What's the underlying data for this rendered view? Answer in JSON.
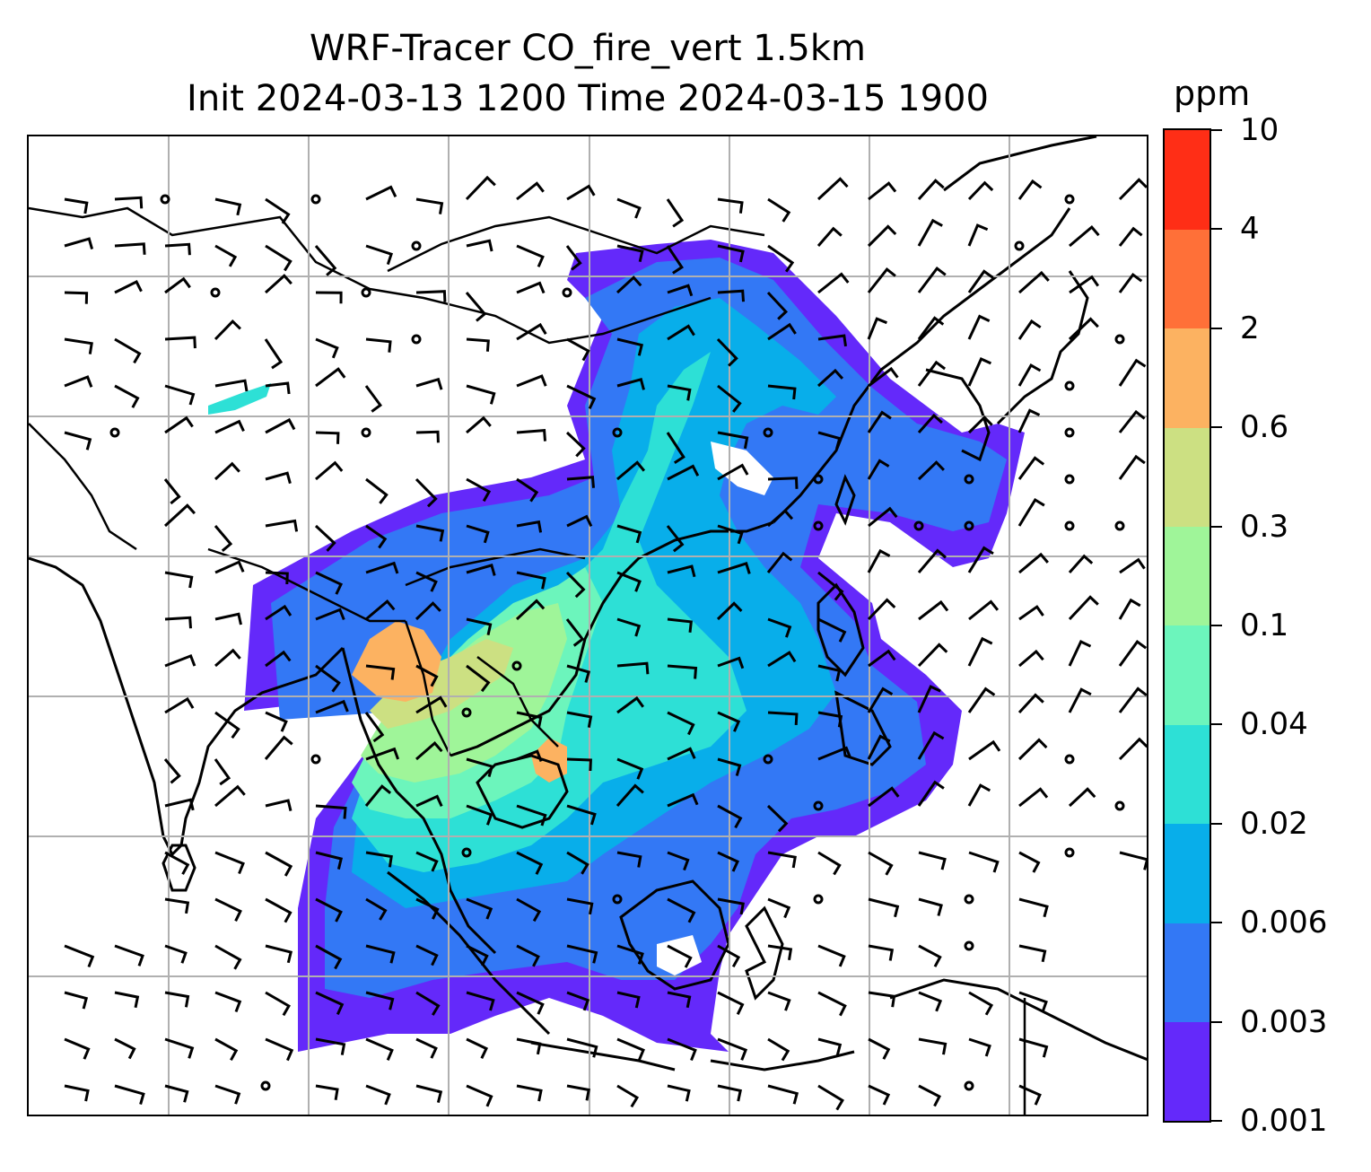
{
  "title": {
    "line1": "WRF-Tracer CO_fire_vert 1.5km",
    "line2": "Init 2024-03-13 1200 Time 2024-03-15 1900"
  },
  "colorbar": {
    "unit": "ppm",
    "ticks": [
      "0.001",
      "0.003",
      "0.006",
      "0.02",
      "0.04",
      "0.1",
      "0.3",
      "0.6",
      "2",
      "4",
      "10"
    ],
    "colors": [
      "#6429fa",
      "#3378f5",
      "#08aeea",
      "#2de0d6",
      "#6cf5bc",
      "#9ff599",
      "#cce082",
      "#fcb261",
      "#ff7038",
      "#ff2e16"
    ]
  },
  "map": {
    "region": "South and Southeast Asia",
    "field": "CO_fire_vert",
    "overlays": [
      "coastlines",
      "country borders",
      "lat-lon gridlines",
      "wind barbs"
    ]
  }
}
